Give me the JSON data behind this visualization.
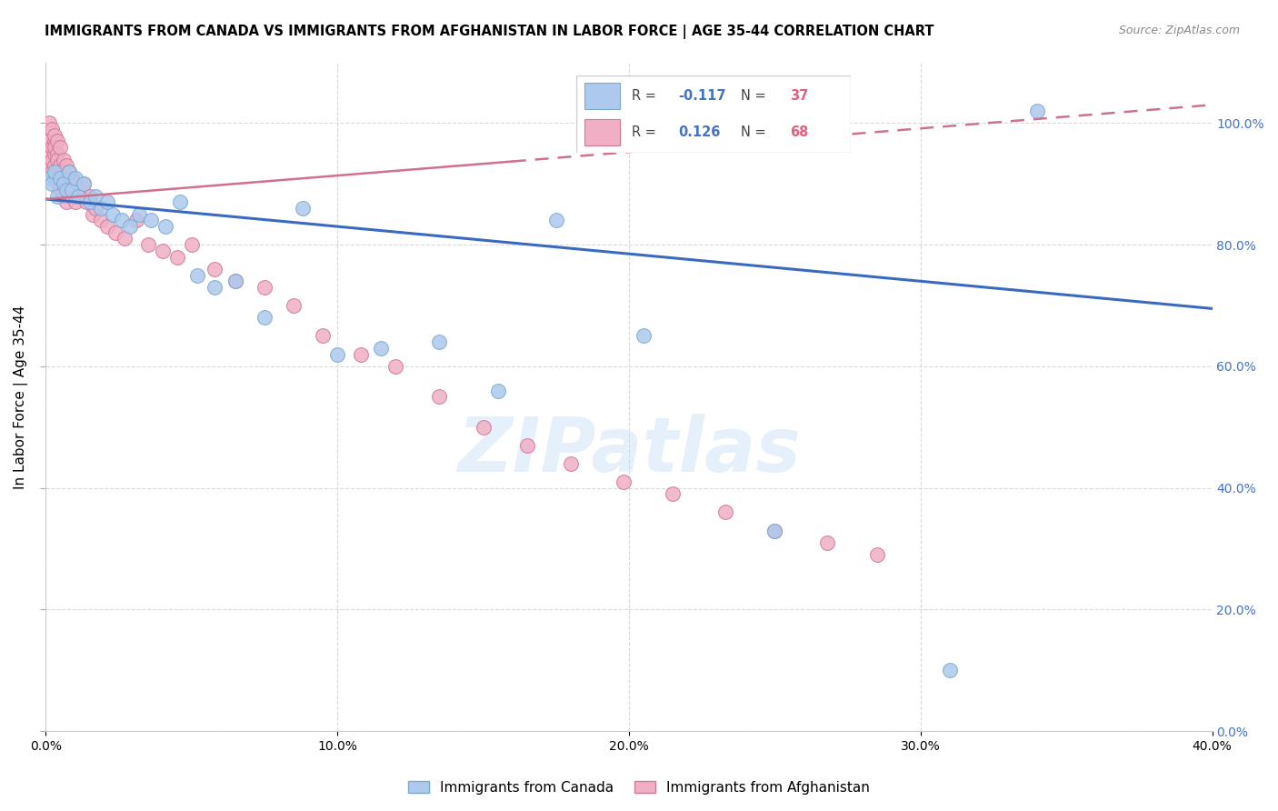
{
  "title": "IMMIGRANTS FROM CANADA VS IMMIGRANTS FROM AFGHANISTAN IN LABOR FORCE | AGE 35-44 CORRELATION CHART",
  "source": "Source: ZipAtlas.com",
  "ylabel": "In Labor Force | Age 35-44",
  "xmin": 0.0,
  "xmax": 0.4,
  "ymin": 0.0,
  "ymax": 1.1,
  "watermark": "ZIPatlas",
  "grid_color": "#d8d8d8",
  "canada_color": "#adc9ed",
  "canada_edge": "#7aaad0",
  "afghanistan_color": "#f0afc5",
  "afghanistan_edge": "#d07898",
  "trendline_canada_color": "#3a6abf",
  "trendline_afghanistan_color": "#d07090",
  "canada_x": [
    0.001,
    0.002,
    0.003,
    0.004,
    0.005,
    0.006,
    0.007,
    0.008,
    0.009,
    0.01,
    0.011,
    0.013,
    0.015,
    0.017,
    0.019,
    0.021,
    0.023,
    0.026,
    0.029,
    0.032,
    0.036,
    0.041,
    0.046,
    0.052,
    0.058,
    0.065,
    0.075,
    0.088,
    0.1,
    0.115,
    0.135,
    0.155,
    0.175,
    0.205,
    0.25,
    0.31,
    0.34
  ],
  "canada_y": [
    0.91,
    0.9,
    0.92,
    0.88,
    0.91,
    0.9,
    0.89,
    0.92,
    0.89,
    0.91,
    0.88,
    0.9,
    0.87,
    0.88,
    0.86,
    0.87,
    0.85,
    0.84,
    0.83,
    0.85,
    0.84,
    0.83,
    0.87,
    0.75,
    0.73,
    0.74,
    0.68,
    0.86,
    0.62,
    0.63,
    0.64,
    0.56,
    0.84,
    0.65,
    0.33,
    0.1,
    1.02
  ],
  "afghanistan_x": [
    0.001,
    0.001,
    0.001,
    0.001,
    0.002,
    0.002,
    0.002,
    0.002,
    0.003,
    0.003,
    0.003,
    0.003,
    0.003,
    0.003,
    0.004,
    0.004,
    0.004,
    0.004,
    0.004,
    0.005,
    0.005,
    0.005,
    0.005,
    0.006,
    0.006,
    0.006,
    0.007,
    0.007,
    0.007,
    0.008,
    0.008,
    0.009,
    0.009,
    0.01,
    0.01,
    0.011,
    0.012,
    0.013,
    0.014,
    0.015,
    0.016,
    0.017,
    0.019,
    0.021,
    0.024,
    0.027,
    0.031,
    0.035,
    0.04,
    0.045,
    0.05,
    0.058,
    0.065,
    0.075,
    0.085,
    0.095,
    0.108,
    0.12,
    0.135,
    0.15,
    0.165,
    0.18,
    0.198,
    0.215,
    0.233,
    0.25,
    0.268,
    0.285
  ],
  "afghanistan_y": [
    0.97,
    1.0,
    0.95,
    0.93,
    0.96,
    0.99,
    0.94,
    0.92,
    0.97,
    0.95,
    0.93,
    0.98,
    0.96,
    0.91,
    0.95,
    0.97,
    0.94,
    0.92,
    0.9,
    0.96,
    0.93,
    0.91,
    0.89,
    0.94,
    0.92,
    0.88,
    0.93,
    0.91,
    0.87,
    0.92,
    0.9,
    0.91,
    0.88,
    0.9,
    0.87,
    0.89,
    0.88,
    0.9,
    0.87,
    0.88,
    0.85,
    0.86,
    0.84,
    0.83,
    0.82,
    0.81,
    0.84,
    0.8,
    0.79,
    0.78,
    0.8,
    0.76,
    0.74,
    0.73,
    0.7,
    0.65,
    0.62,
    0.6,
    0.55,
    0.5,
    0.47,
    0.44,
    0.41,
    0.39,
    0.36,
    0.33,
    0.31,
    0.29
  ],
  "canada_trendline_x0": 0.0,
  "canada_trendline_y0": 0.875,
  "canada_trendline_x1": 0.4,
  "canada_trendline_y1": 0.695,
  "afghanistan_trendline_x0": 0.0,
  "afghanistan_trendline_y0": 0.875,
  "afghanistan_trendline_x1": 0.4,
  "afghanistan_trendline_y1": 1.03
}
